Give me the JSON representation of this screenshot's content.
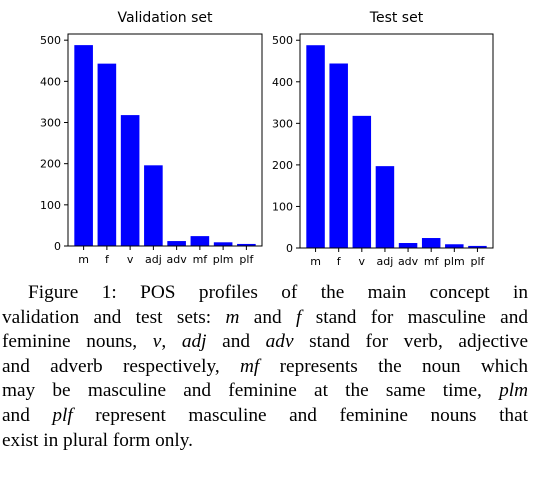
{
  "chart_data": [
    {
      "type": "bar",
      "title": "Validation set",
      "categories": [
        "m",
        "f",
        "v",
        "adj",
        "adv",
        "mf",
        "plm",
        "plf"
      ],
      "values": [
        488,
        443,
        318,
        196,
        12,
        24,
        9,
        5
      ],
      "yticks": [
        0,
        100,
        200,
        300,
        400,
        500
      ],
      "ylim": [
        0,
        515
      ],
      "color": "#0000ff",
      "grid": false
    },
    {
      "type": "bar",
      "title": "Test set",
      "categories": [
        "m",
        "f",
        "v",
        "adj",
        "adv",
        "mf",
        "plm",
        "plf"
      ],
      "values": [
        488,
        444,
        318,
        197,
        12,
        24,
        9,
        5
      ],
      "yticks": [
        0,
        100,
        200,
        300,
        400,
        500
      ],
      "ylim": [
        0,
        515
      ],
      "color": "#0000ff",
      "grid": false
    }
  ],
  "caption": {
    "lines": [
      [
        {
          "t": "Figure 1: POS profiles of the main concept in",
          "i": false
        }
      ],
      [
        {
          "t": "validation and test sets: ",
          "i": false
        },
        {
          "t": "m",
          "i": true
        },
        {
          "t": " and ",
          "i": false
        },
        {
          "t": "f",
          "i": true
        },
        {
          "t": " stand for masculine and",
          "i": false
        }
      ],
      [
        {
          "t": "feminine nouns, ",
          "i": false
        },
        {
          "t": "v",
          "i": true
        },
        {
          "t": ", ",
          "i": false
        },
        {
          "t": "adj",
          "i": true
        },
        {
          "t": " and ",
          "i": false
        },
        {
          "t": "adv",
          "i": true
        },
        {
          "t": " stand for verb, adjective",
          "i": false
        }
      ],
      [
        {
          "t": "and adverb respectively, ",
          "i": false
        },
        {
          "t": "mf",
          "i": true
        },
        {
          "t": " represents the noun which",
          "i": false
        }
      ],
      [
        {
          "t": "may be masculine and feminine at the same time, ",
          "i": false
        },
        {
          "t": "plm",
          "i": true
        }
      ],
      [
        {
          "t": "and ",
          "i": false
        },
        {
          "t": "plf",
          "i": true
        },
        {
          "t": " represent masculine and feminine nouns that",
          "i": false
        }
      ],
      [
        {
          "t": "exist in plural form only.",
          "i": false
        }
      ]
    ]
  }
}
